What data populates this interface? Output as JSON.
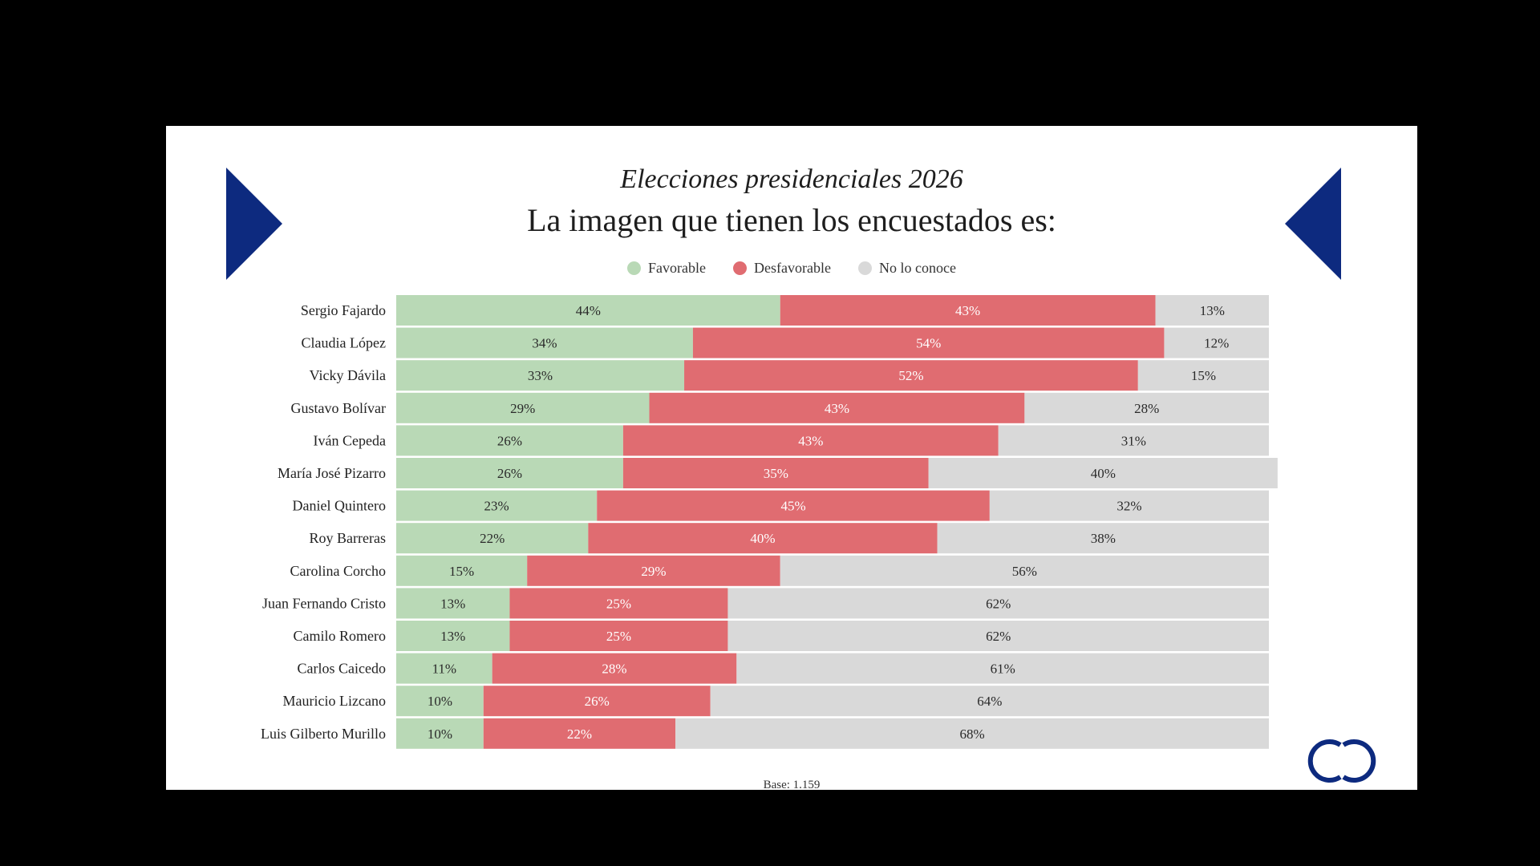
{
  "header": {
    "subtitle": "Elecciones presidenciales 2026",
    "title": "La imagen que tienen los encuestados es:"
  },
  "legend": [
    {
      "label": "Favorable",
      "color": "#b9d9b6"
    },
    {
      "label": "Desfavorable",
      "color": "#e06c71"
    },
    {
      "label": "No lo conoce",
      "color": "#d9d9d9"
    }
  ],
  "footer": {
    "base_label": "Base: 1.159"
  },
  "colors": {
    "arrow": "#0d2a7f",
    "logo": "#0d2a7f",
    "background": "#ffffff",
    "frame": "#000000"
  },
  "icons": [
    "triangle-right-icon",
    "triangle-left-icon",
    "logo-icon"
  ],
  "chart_data": {
    "type": "bar",
    "orientation": "horizontal",
    "stacked": true,
    "categories": [
      "Sergio Fajardo",
      "Claudia López",
      "Vicky Dávila",
      "Gustavo Bolívar",
      "Iván Cepeda",
      "María José Pizarro",
      "Daniel Quintero",
      "Roy Barreras",
      "Carolina Corcho",
      "Juan Fernando Cristo",
      "Camilo Romero",
      "Carlos Caicedo",
      "Mauricio Lizcano",
      "Luis Gilberto Murillo"
    ],
    "series": [
      {
        "name": "Favorable",
        "color": "#b9d9b6",
        "values": [
          44,
          34,
          33,
          29,
          26,
          26,
          23,
          22,
          15,
          13,
          13,
          11,
          10,
          10
        ]
      },
      {
        "name": "Desfavorable",
        "color": "#e06c71",
        "values": [
          43,
          54,
          52,
          43,
          43,
          35,
          45,
          40,
          29,
          25,
          25,
          28,
          26,
          22
        ]
      },
      {
        "name": "No lo conoce",
        "color": "#d9d9d9",
        "values": [
          13,
          12,
          15,
          28,
          31,
          40,
          32,
          38,
          56,
          62,
          62,
          61,
          64,
          68
        ]
      }
    ],
    "value_suffix": "%",
    "legend_position": "top",
    "grid": false
  }
}
